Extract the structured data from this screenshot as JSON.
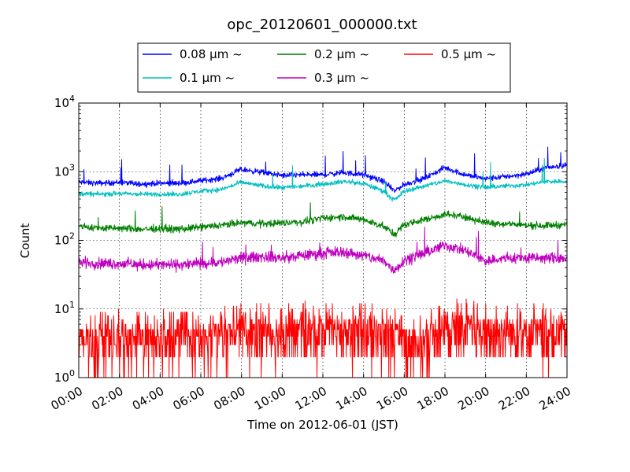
{
  "chart_data": {
    "type": "line",
    "title": "opc_20120601_000000.txt",
    "xlabel": "Time on 2012-06-01 (JST)",
    "ylabel": "Count",
    "y_scale": "log",
    "ylim": [
      1,
      10000
    ],
    "xlim_hours": [
      0,
      24
    ],
    "x_tick_labels": [
      "00:00",
      "02:00",
      "04:00",
      "06:00",
      "08:00",
      "10:00",
      "12:00",
      "14:00",
      "16:00",
      "18:00",
      "20:00",
      "22:00",
      "24:00"
    ],
    "y_tick_labels": [
      {
        "base": "10",
        "exp": "0",
        "value": 1
      },
      {
        "base": "10",
        "exp": "1",
        "value": 10
      },
      {
        "base": "10",
        "exp": "2",
        "value": 100
      },
      {
        "base": "10",
        "exp": "3",
        "value": 1000
      },
      {
        "base": "10",
        "exp": "4",
        "value": 10000
      }
    ],
    "grid": true,
    "legend_position": "top-center, above plot",
    "series": [
      {
        "name": "0.08 μm ~",
        "color": "#0000ff",
        "x_hours": [
          0,
          1,
          2,
          3,
          4,
          5,
          6,
          7,
          8,
          9,
          10,
          11,
          12,
          13,
          14,
          15,
          15.5,
          16,
          17,
          18,
          19,
          20,
          21,
          22,
          23,
          24
        ],
        "values": [
          700,
          680,
          700,
          660,
          680,
          680,
          740,
          800,
          1080,
          980,
          880,
          900,
          900,
          970,
          900,
          720,
          520,
          650,
          800,
          1150,
          900,
          790,
          850,
          920,
          1150,
          1250
        ]
      },
      {
        "name": "0.1 μm ~",
        "color": "#00bfbf",
        "x_hours": [
          0,
          1,
          2,
          3,
          4,
          5,
          6,
          7,
          8,
          9,
          10,
          11,
          12,
          13,
          14,
          15,
          15.5,
          16,
          17,
          18,
          19,
          20,
          21,
          22,
          23,
          24
        ],
        "values": [
          480,
          470,
          480,
          470,
          470,
          470,
          520,
          550,
          700,
          620,
          580,
          620,
          660,
          720,
          670,
          520,
          380,
          520,
          620,
          730,
          650,
          590,
          620,
          640,
          720,
          720
        ]
      },
      {
        "name": "0.2 μm ~",
        "color": "#007f00",
        "x_hours": [
          0,
          1,
          2,
          3,
          4,
          5,
          6,
          7,
          8,
          9,
          10,
          11,
          12,
          13,
          14,
          15,
          15.5,
          16,
          17,
          18,
          19,
          20,
          21,
          22,
          23,
          24
        ],
        "values": [
          160,
          150,
          150,
          145,
          148,
          145,
          155,
          165,
          180,
          175,
          180,
          185,
          210,
          220,
          200,
          160,
          120,
          170,
          200,
          240,
          220,
          180,
          175,
          165,
          165,
          170
        ]
      },
      {
        "name": "0.3 μm ~",
        "color": "#bf00bf",
        "x_hours": [
          0,
          1,
          2,
          3,
          4,
          5,
          6,
          7,
          8,
          9,
          10,
          11,
          12,
          13,
          14,
          15,
          15.5,
          16,
          17,
          18,
          19,
          20,
          21,
          22,
          23,
          24
        ],
        "values": [
          48,
          46,
          46,
          44,
          44,
          44,
          46,
          48,
          55,
          58,
          55,
          60,
          65,
          68,
          60,
          50,
          36,
          52,
          65,
          85,
          70,
          50,
          55,
          55,
          55,
          55
        ]
      },
      {
        "name": "0.5 μm ~",
        "color": "#ff0000",
        "x_hours": [
          0,
          2,
          4,
          6,
          8,
          10,
          12,
          14,
          16,
          17,
          18,
          20,
          22,
          24
        ],
        "values": [
          3,
          3,
          3,
          3,
          4,
          4,
          4,
          4,
          3,
          3,
          5,
          4,
          4,
          4
        ]
      }
    ]
  }
}
